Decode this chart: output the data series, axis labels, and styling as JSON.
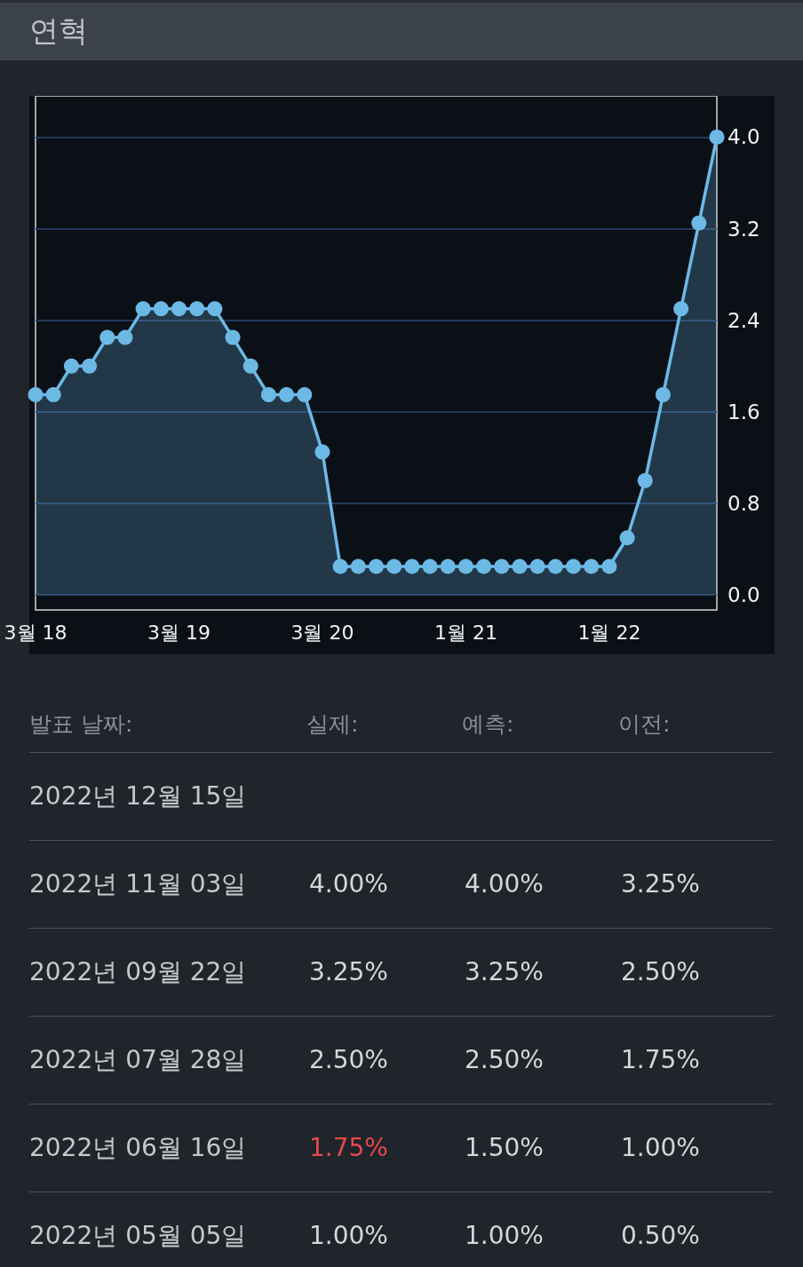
{
  "chart_data": [
    {
      "type": "area",
      "title": "연혁",
      "categories": [
        "3월 18",
        null,
        null,
        null,
        null,
        null,
        null,
        null,
        "3월 19",
        null,
        null,
        null,
        null,
        null,
        null,
        null,
        "3월 20",
        null,
        null,
        null,
        null,
        null,
        null,
        null,
        "1월 21",
        null,
        null,
        null,
        null,
        null,
        null,
        null,
        "1월 22",
        null,
        null,
        null,
        null,
        null,
        null
      ],
      "series": [
        {
          "color": "#6cb9e6",
          "values": [
            1.75,
            1.75,
            2.0,
            2.0,
            2.25,
            2.25,
            2.5,
            2.5,
            2.5,
            2.5,
            2.5,
            2.25,
            2.0,
            1.75,
            1.75,
            1.75,
            1.25,
            0.25,
            0.25,
            0.25,
            0.25,
            0.25,
            0.25,
            0.25,
            0.25,
            0.25,
            0.25,
            0.25,
            0.25,
            0.25,
            0.25,
            0.25,
            0.25,
            0.5,
            1.0,
            1.75,
            2.5,
            3.25,
            4.0
          ]
        }
      ],
      "ylim": [
        -0.13,
        4.36
      ],
      "yticks": [
        {
          "value": 0,
          "label": "0.0"
        },
        0.8,
        1.6,
        2.4,
        3.2,
        {
          "value": 4,
          "label": "4.0"
        }
      ],
      "grid": "y",
      "marker": "circle",
      "line_style": "solid"
    },
    {
      "type": "other",
      "ylabel": "발표 날짜:",
      "categories": [
        "2022년 12월 15일",
        "2022년 11월 03일",
        "2022년 09월 22일",
        "2022년 07월 28일",
        "2022년 06월 16일",
        "2022년 05월 05일"
      ],
      "series": [
        {
          "name": "실제:",
          "colors": [
            null,
            "#d3d7db",
            "#d3d7db",
            "#d3d7db",
            "#e5484d",
            "#d3d7db"
          ],
          "values": [
            null,
            4.0,
            3.25,
            2.5,
            1.75,
            1.0
          ],
          "value_labels": [
            null,
            "4.00%",
            "3.25%",
            "2.50%",
            "1.75%",
            "1.00%"
          ]
        },
        {
          "name": "예측:",
          "values": [
            null,
            4.0,
            3.25,
            2.5,
            1.5,
            1.0
          ],
          "value_labels": [
            null,
            "4.00%",
            "3.25%",
            "2.50%",
            "1.50%",
            "1.00%"
          ]
        },
        {
          "name": "이전:",
          "values": [
            null,
            3.25,
            2.5,
            1.75,
            1.0,
            0.5
          ],
          "value_labels": [
            null,
            "3.25%",
            "2.50%",
            "1.75%",
            "1.00%",
            "0.50%"
          ]
        }
      ]
    }
  ]
}
